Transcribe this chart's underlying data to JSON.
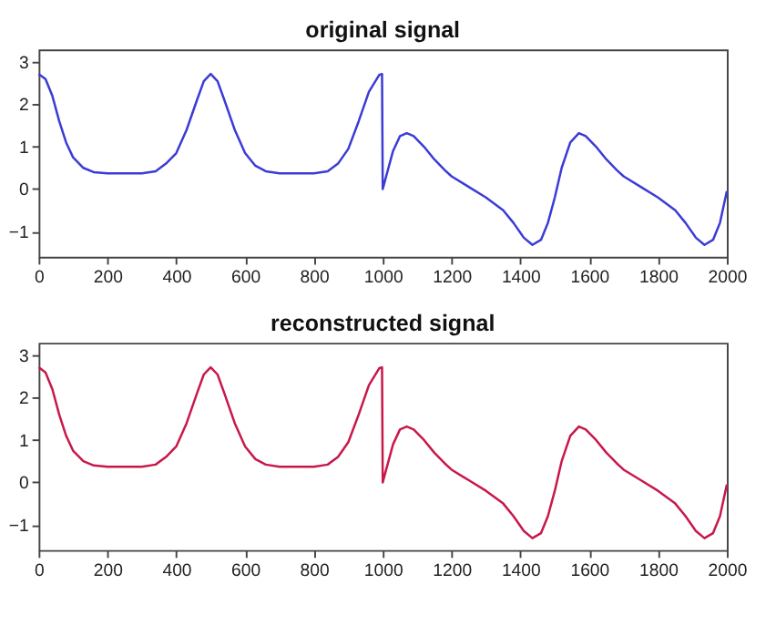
{
  "chart_data": [
    {
      "type": "line",
      "title": "original signal",
      "xlim": [
        0,
        2000
      ],
      "xticks": [
        0,
        200,
        400,
        600,
        800,
        1000,
        1200,
        1400,
        1600,
        1800,
        2000
      ],
      "ylim": [
        -1.6,
        3.3
      ],
      "yticks": [
        -1,
        0,
        1,
        2,
        3
      ],
      "x": [
        0,
        20,
        40,
        60,
        80,
        100,
        130,
        160,
        200,
        300,
        340,
        370,
        400,
        430,
        460,
        480,
        500,
        520,
        540,
        570,
        600,
        630,
        660,
        700,
        800,
        840,
        870,
        900,
        930,
        960,
        990,
        998,
        1000,
        1010,
        1030,
        1050,
        1070,
        1090,
        1120,
        1150,
        1180,
        1200,
        1250,
        1300,
        1350,
        1380,
        1410,
        1435,
        1460,
        1480,
        1500,
        1520,
        1545,
        1570,
        1590,
        1620,
        1650,
        1680,
        1700,
        1750,
        1800,
        1850,
        1880,
        1910,
        1935,
        1960,
        1980,
        2000
      ],
      "series": [
        {
          "color": "#3b3bd6",
          "values": [
            2.72,
            2.6,
            2.2,
            1.6,
            1.1,
            0.75,
            0.5,
            0.4,
            0.37,
            0.37,
            0.42,
            0.6,
            0.85,
            1.4,
            2.1,
            2.55,
            2.72,
            2.55,
            2.1,
            1.4,
            0.85,
            0.55,
            0.42,
            0.37,
            0.37,
            0.42,
            0.6,
            0.95,
            1.6,
            2.3,
            2.7,
            2.72,
            0.0,
            0.3,
            0.9,
            1.25,
            1.32,
            1.25,
            1.0,
            0.7,
            0.45,
            0.3,
            0.05,
            -0.2,
            -0.5,
            -0.8,
            -1.15,
            -1.32,
            -1.2,
            -0.8,
            -0.2,
            0.5,
            1.1,
            1.32,
            1.25,
            1.0,
            0.7,
            0.45,
            0.3,
            0.05,
            -0.2,
            -0.5,
            -0.8,
            -1.15,
            -1.32,
            -1.2,
            -0.8,
            -0.05
          ]
        }
      ]
    },
    {
      "type": "line",
      "title": "reconstructed signal",
      "xlim": [
        0,
        2000
      ],
      "xticks": [
        0,
        200,
        400,
        600,
        800,
        1000,
        1200,
        1400,
        1600,
        1800,
        2000
      ],
      "ylim": [
        -1.6,
        3.3
      ],
      "yticks": [
        -1,
        0,
        1,
        2,
        3
      ],
      "x": [
        0,
        20,
        40,
        60,
        80,
        100,
        130,
        160,
        200,
        300,
        340,
        370,
        400,
        430,
        460,
        480,
        500,
        520,
        540,
        570,
        600,
        630,
        660,
        700,
        800,
        840,
        870,
        900,
        930,
        960,
        990,
        998,
        1000,
        1010,
        1030,
        1050,
        1070,
        1090,
        1120,
        1150,
        1180,
        1200,
        1250,
        1300,
        1350,
        1380,
        1410,
        1435,
        1460,
        1480,
        1500,
        1520,
        1545,
        1570,
        1590,
        1620,
        1650,
        1680,
        1700,
        1750,
        1800,
        1850,
        1880,
        1910,
        1935,
        1960,
        1980,
        2000
      ],
      "series": [
        {
          "color": "#c8184a",
          "values": [
            2.72,
            2.6,
            2.2,
            1.6,
            1.1,
            0.75,
            0.5,
            0.4,
            0.37,
            0.37,
            0.42,
            0.6,
            0.85,
            1.4,
            2.1,
            2.55,
            2.72,
            2.55,
            2.1,
            1.4,
            0.85,
            0.55,
            0.42,
            0.37,
            0.37,
            0.42,
            0.6,
            0.95,
            1.6,
            2.3,
            2.7,
            2.72,
            0.0,
            0.3,
            0.9,
            1.25,
            1.32,
            1.25,
            1.0,
            0.7,
            0.45,
            0.3,
            0.05,
            -0.2,
            -0.5,
            -0.8,
            -1.15,
            -1.32,
            -1.2,
            -0.8,
            -0.2,
            0.5,
            1.1,
            1.32,
            1.25,
            1.0,
            0.7,
            0.45,
            0.3,
            0.05,
            -0.2,
            -0.5,
            -0.8,
            -1.15,
            -1.32,
            -1.2,
            -0.8,
            -0.05
          ]
        }
      ]
    }
  ]
}
